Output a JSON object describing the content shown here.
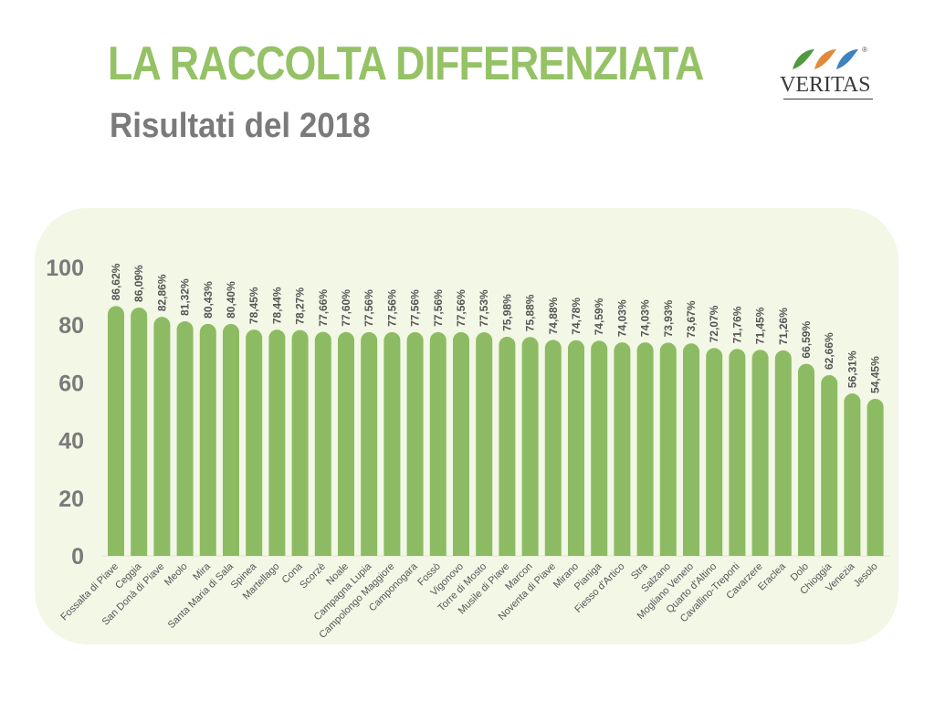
{
  "header": {
    "title": "LA RACCOLTA DIFFERENZIATA",
    "subtitle": "Risultati del 2018"
  },
  "logo": {
    "text": "VERITAS",
    "registered_mark": "®"
  },
  "colors": {
    "title": "#94c265",
    "subtitle": "#7a7a7a",
    "bar": "#8dbb63",
    "panel": "#f3f7e6",
    "axis_text": "#7a7a7a",
    "label_text": "#555555",
    "logo_green": "#4f9a3e",
    "logo_orange": "#e08a3a",
    "logo_blue": "#3f82c1"
  },
  "chart_data": {
    "type": "bar",
    "title": "",
    "xlabel": "",
    "ylabel": "",
    "ylim": [
      0,
      100
    ],
    "yticks": [
      0,
      20,
      40,
      60,
      80,
      100
    ],
    "grid": false,
    "categories": [
      "Fossalta di Piave",
      "Ceggia",
      "San Donà di Piave",
      "Meolo",
      "Mira",
      "Santa Maria di Sala",
      "Spinea",
      "Martellago",
      "Cona",
      "Scorzè",
      "Noale",
      "Campagna Lupia",
      "Campolongo Maggiore",
      "Camponogara",
      "Fossò",
      "Vigonovo",
      "Torre di Mosto",
      "Musile di Piave",
      "Marcon",
      "Noventa di Piave",
      "Mirano",
      "Pianiga",
      "Fiesso d'Artico",
      "Stra",
      "Salzano",
      "Mogliano Veneto",
      "Quarto d'Altino",
      "Cavallino-Treporti",
      "Cavarzere",
      "Eraclea",
      "Dolo",
      "Chioggia",
      "Venezia",
      "Jesolo"
    ],
    "values": [
      86.62,
      86.09,
      82.86,
      81.32,
      80.43,
      80.4,
      78.45,
      78.44,
      78.27,
      77.66,
      77.6,
      77.56,
      77.56,
      77.56,
      77.56,
      77.56,
      77.53,
      75.98,
      75.88,
      74.88,
      74.78,
      74.59,
      74.03,
      74.03,
      73.93,
      73.67,
      72.07,
      71.76,
      71.45,
      71.26,
      66.59,
      62.66,
      56.31,
      54.45
    ],
    "value_labels": [
      "86,62%",
      "86,09%",
      "82,86%",
      "81,32%",
      "80,43%",
      "80,40%",
      "78,45%",
      "78,44%",
      "78,27%",
      "77,66%",
      "77,60%",
      "77,56%",
      "77,56%",
      "77,56%",
      "77,56%",
      "77,56%",
      "77,53%",
      "75,98%",
      "75,88%",
      "74,88%",
      "74,78%",
      "74,59%",
      "74,03%",
      "74,03%",
      "73,93%",
      "73,67%",
      "72,07%",
      "71,76%",
      "71,45%",
      "71,26%",
      "66,59%",
      "62,66%",
      "56,31%",
      "54,45%"
    ]
  }
}
